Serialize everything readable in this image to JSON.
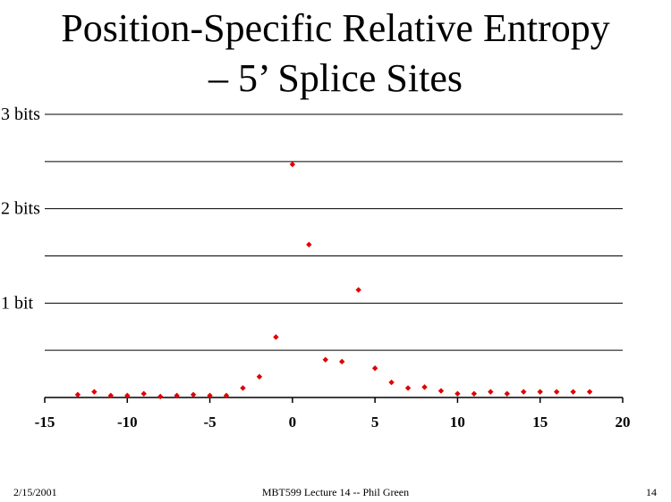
{
  "slide": {
    "title_line1": "Position-Specific Relative Entropy",
    "title_line2": "– 5’ Splice Sites",
    "footer_date": "2/15/2001",
    "footer_course": "MBT599 Lecture 14 -- Phil Green",
    "footer_page": "14"
  },
  "chart_data": {
    "type": "scatter",
    "title": "",
    "xlabel": "",
    "ylabel": "",
    "xlim": [
      -15,
      20
    ],
    "ylim": [
      0,
      3
    ],
    "xticks": [
      -15,
      -10,
      -5,
      0,
      5,
      10,
      15,
      20
    ],
    "xtick_labels": [
      "-15",
      "-10",
      "-5",
      "0",
      "5",
      "10",
      "15",
      "20"
    ],
    "ygrid": [
      0.5,
      1,
      1.5,
      2,
      2.5,
      3
    ],
    "ytick_labels": [
      {
        "value": 3,
        "label": "3 bits"
      },
      {
        "value": 2,
        "label": "2 bits"
      },
      {
        "value": 1,
        "label": "1 bit"
      }
    ],
    "grid": true,
    "marker_color": "#e00000",
    "marker": "diamond",
    "points": [
      {
        "x": -13,
        "y": 0.03
      },
      {
        "x": -12,
        "y": 0.06
      },
      {
        "x": -11,
        "y": 0.02
      },
      {
        "x": -10,
        "y": 0.02
      },
      {
        "x": -9,
        "y": 0.04
      },
      {
        "x": -8,
        "y": 0.01
      },
      {
        "x": -7,
        "y": 0.02
      },
      {
        "x": -6,
        "y": 0.03
      },
      {
        "x": -5,
        "y": 0.02
      },
      {
        "x": -4,
        "y": 0.02
      },
      {
        "x": -3,
        "y": 0.1
      },
      {
        "x": -2,
        "y": 0.22
      },
      {
        "x": -1,
        "y": 0.64
      },
      {
        "x": 0,
        "y": 2.47
      },
      {
        "x": 1,
        "y": 1.62
      },
      {
        "x": 2,
        "y": 0.4
      },
      {
        "x": 3,
        "y": 0.38
      },
      {
        "x": 4,
        "y": 1.14
      },
      {
        "x": 5,
        "y": 0.31
      },
      {
        "x": 6,
        "y": 0.16
      },
      {
        "x": 7,
        "y": 0.1
      },
      {
        "x": 8,
        "y": 0.11
      },
      {
        "x": 9,
        "y": 0.07
      },
      {
        "x": 10,
        "y": 0.04
      },
      {
        "x": 11,
        "y": 0.04
      },
      {
        "x": 12,
        "y": 0.06
      },
      {
        "x": 13,
        "y": 0.04
      },
      {
        "x": 14,
        "y": 0.06
      },
      {
        "x": 15,
        "y": 0.06
      },
      {
        "x": 16,
        "y": 0.06
      },
      {
        "x": 17,
        "y": 0.06
      },
      {
        "x": 18,
        "y": 0.06
      }
    ]
  }
}
